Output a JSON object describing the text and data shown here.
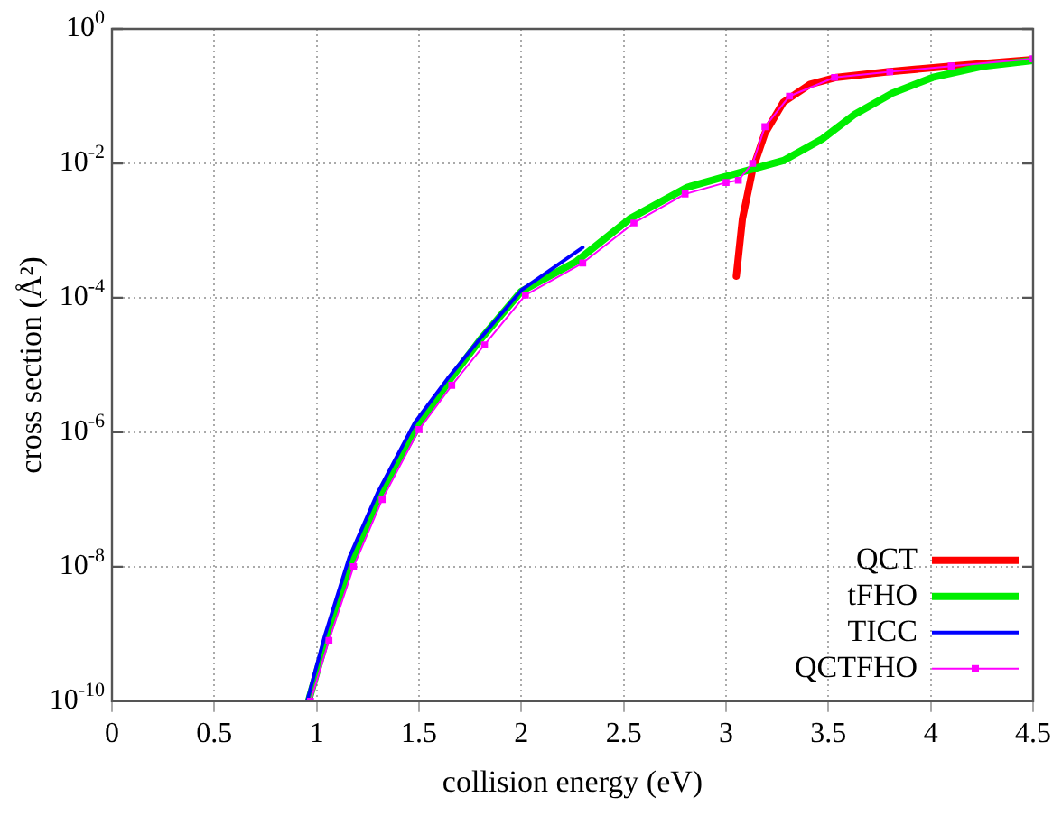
{
  "chart_data": {
    "type": "line",
    "xlabel": "collision energy (eV)",
    "ylabel": "cross section (Å²)",
    "xlim": [
      0,
      4.5
    ],
    "xticks": [
      0,
      0.5,
      1,
      1.5,
      2,
      2.5,
      3,
      3.5,
      4,
      4.5
    ],
    "ylim": [
      1e-10,
      1
    ],
    "yticks": [
      {
        "value": 1e-10,
        "label": "10$^{-10}$"
      },
      {
        "value": 1e-08,
        "label": "10$^{-8}$"
      },
      {
        "value": 1e-06,
        "label": "10$^{-6}$"
      },
      {
        "value": 0.0001,
        "label": "10$^{-4}$"
      },
      {
        "value": 0.01,
        "label": "10$^{-2}$"
      },
      {
        "value": 1,
        "label": "10$^{0}$"
      }
    ],
    "log": "y",
    "grid": true,
    "legend": "bottom right",
    "marker": "none",
    "line_style": "solid",
    "series": [
      {
        "name": "QCT",
        "color": "#ff0000",
        "x": [
          3.05,
          3.08,
          3.13,
          3.19,
          3.28,
          3.41,
          3.54,
          3.79,
          4.1,
          4.5
        ],
        "values": [
          0.00021,
          0.0015,
          0.0081,
          0.028,
          0.081,
          0.15,
          0.19,
          0.23,
          0.28,
          0.35
        ]
      },
      {
        "name": "tFHO",
        "color": "#00ee00",
        "x": [
          0.96,
          1.05,
          1.17,
          1.31,
          1.5,
          1.65,
          1.8,
          2.0,
          2.27,
          2.53,
          2.81,
          3.06,
          3.28,
          3.47,
          3.63,
          3.81,
          4.01,
          4.26,
          4.5
        ],
        "values": [
          1e-10,
          9e-10,
          1.2e-08,
          1.2e-07,
          1.3e-06,
          6e-06,
          2.4e-05,
          0.000125,
          0.00035,
          0.0015,
          0.0044,
          0.0072,
          0.011,
          0.023,
          0.054,
          0.11,
          0.19,
          0.28,
          0.34
        ]
      },
      {
        "name": "TICC",
        "color": "#0000ff",
        "x": [
          0.953,
          1.04,
          1.16,
          1.3,
          1.48,
          1.64,
          1.8,
          2.0,
          2.3
        ],
        "values": [
          1e-10,
          9.5e-10,
          1.4e-08,
          1.3e-07,
          1.4e-06,
          6.3e-06,
          2.5e-05,
          0.00013,
          0.00056
        ]
      },
      {
        "name": "QCTFHO",
        "color": "#ff00ff",
        "marker": "square",
        "x": [
          0.97,
          1.06,
          1.18,
          1.32,
          1.5,
          1.66,
          1.82,
          2.02,
          2.3,
          2.55,
          2.8,
          3.0,
          3.06,
          3.13,
          3.19,
          3.31,
          3.53,
          3.8,
          4.1,
          4.5
        ],
        "values": [
          1e-10,
          8e-10,
          1e-08,
          1e-07,
          1.1e-06,
          5e-06,
          2e-05,
          0.00011,
          0.00033,
          0.0013,
          0.0035,
          0.0052,
          0.0056,
          0.01,
          0.035,
          0.1,
          0.19,
          0.23,
          0.28,
          0.36
        ]
      }
    ]
  }
}
